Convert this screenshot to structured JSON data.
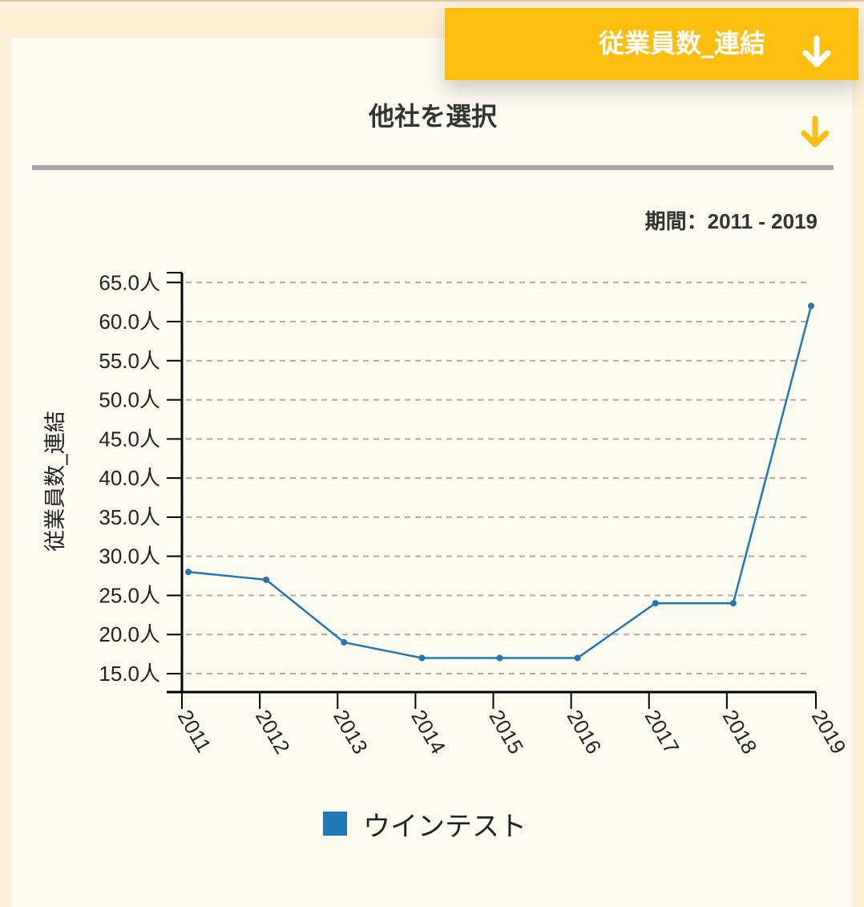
{
  "metric_selector": {
    "label": "従業員数_連結",
    "color": "#fcbf10",
    "icon": "arrow-down-icon"
  },
  "company_selector": {
    "label": "他社を選択",
    "icon": "arrow-down-icon"
  },
  "period": {
    "prefix": "期間：",
    "range": "2011 - 2019"
  },
  "colors": {
    "series": "#1f77b4",
    "grid": "#aaaaaa",
    "card": "#fdfaf0",
    "page": "#fdefd6"
  },
  "chart_data": {
    "type": "line",
    "ylabel": "従業員数_連結",
    "y_unit": "人",
    "ylim": [
      12,
      66
    ],
    "yticks": [
      15,
      20,
      25,
      30,
      35,
      40,
      45,
      50,
      55,
      60,
      65
    ],
    "x": [
      "2011",
      "2012",
      "2013",
      "2014",
      "2015",
      "2016",
      "2017",
      "2018",
      "2019"
    ],
    "series": [
      {
        "name": "ウインテスト",
        "values": [
          28,
          27,
          19,
          17,
          17,
          17,
          24,
          24,
          62
        ]
      }
    ],
    "grid": true,
    "legend_position": "bottom-center"
  }
}
